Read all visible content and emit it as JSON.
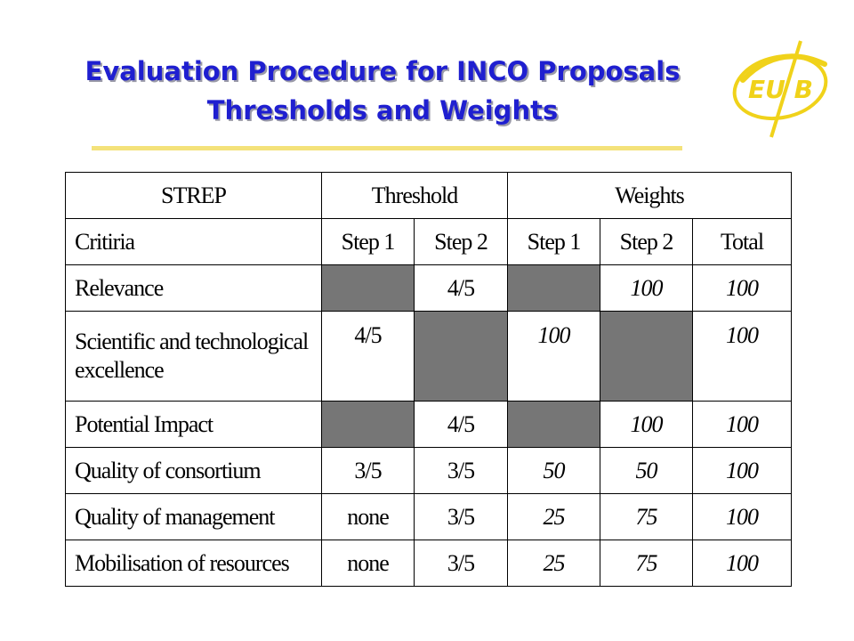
{
  "title": {
    "line1": "Evaluation Procedure for INCO Proposals",
    "line2": "Thresholds and Weights"
  },
  "logo": {
    "text": "EU B"
  },
  "table": {
    "header_groups": [
      "STREP",
      "Threshold",
      "Weights"
    ],
    "subheaders": [
      "Critiria",
      "Step 1",
      "Step 2",
      "Step 1",
      "Step 2",
      "Total"
    ],
    "rows": [
      {
        "criterion": "Relevance",
        "threshold_step1": "",
        "threshold_step2": "4/5",
        "weight_step1": "",
        "weight_step2": "100",
        "total": "100"
      },
      {
        "criterion": "Scientific and technological excellence",
        "threshold_step1": "4/5",
        "threshold_step2": "",
        "weight_step1": "100",
        "weight_step2": "",
        "total": "100"
      },
      {
        "criterion": "Potential Impact",
        "threshold_step1": "",
        "threshold_step2": "4/5",
        "weight_step1": "",
        "weight_step2": "100",
        "total": "100"
      },
      {
        "criterion": "Quality of consortium",
        "threshold_step1": "3/5",
        "threshold_step2": "3/5",
        "weight_step1": "50",
        "weight_step2": "50",
        "total": "100"
      },
      {
        "criterion": "Quality of management",
        "threshold_step1": "none",
        "threshold_step2": "3/5",
        "weight_step1": "25",
        "weight_step2": "75",
        "total": "100"
      },
      {
        "criterion": "Mobilisation of resources",
        "threshold_step1": "none",
        "threshold_step2": "3/5",
        "weight_step1": "25",
        "weight_step2": "75",
        "total": "100"
      }
    ]
  },
  "colors": {
    "title": "#1f1fd0",
    "title_shadow": "#9a9aa8",
    "underline": "#f4e27a",
    "logo": "#f0d21a",
    "shaded_cell": "#767676"
  }
}
